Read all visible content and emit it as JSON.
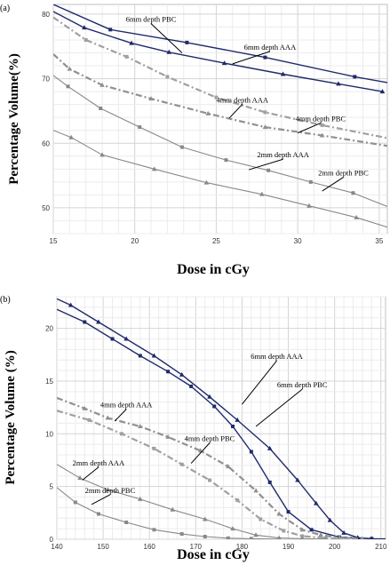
{
  "chart_data": [
    {
      "type": "line",
      "panel_label": "(a)",
      "xlabel": "Dose in cGy",
      "ylabel": "Percentage Volume(%)",
      "xlim": [
        15,
        35.5
      ],
      "ylim": [
        46,
        81.5
      ],
      "x_ticks": [
        15,
        20,
        25,
        30,
        35
      ],
      "y_ticks": [
        50,
        60,
        70,
        80
      ],
      "grid": true,
      "series": [
        {
          "name": "6mm depth PBC",
          "color": "#1f2a6b",
          "style": "solid",
          "width": 1.4,
          "marker": "square",
          "x": [
            15,
            18.5,
            23.2,
            28.0,
            33.5,
            35.5
          ],
          "y": [
            81.5,
            77.6,
            75.6,
            73.3,
            70.3,
            69.4
          ]
        },
        {
          "name": "6mm depth AAA",
          "color": "#1f2a6b",
          "style": "solid",
          "width": 1.4,
          "marker": "triangle",
          "x": [
            15,
            16.9,
            19.8,
            22.1,
            25.5,
            29.1,
            32.5,
            35.2
          ],
          "y": [
            80.4,
            77.9,
            75.5,
            74.1,
            72.4,
            70.7,
            69.2,
            68.0
          ]
        },
        {
          "name": "4mm depth AAA",
          "color": "#909090",
          "style": "dashdot",
          "width": 2.2,
          "marker": "triangle",
          "x": [
            15,
            16.0,
            18.0,
            21.0,
            24.5,
            28.0,
            31.5,
            35.5
          ],
          "y": [
            73.8,
            71.5,
            69.0,
            66.9,
            64.6,
            62.5,
            61.2,
            59.6
          ]
        },
        {
          "name": "4mm depth PBC",
          "color": "#a0a0a0",
          "style": "dashdot",
          "width": 2.2,
          "marker": "square",
          "x": [
            15,
            17.0,
            19.5,
            22.0,
            25.0,
            28.0,
            31.5,
            35.5
          ],
          "y": [
            79.5,
            76.0,
            73.4,
            70.3,
            67.1,
            64.8,
            62.8,
            60.8
          ]
        },
        {
          "name": "2mm depth AAA",
          "color": "#888888",
          "style": "solid",
          "width": 1.1,
          "marker": "triangle",
          "x": [
            15,
            16.1,
            18.0,
            21.2,
            24.4,
            27.8,
            30.7,
            33.6,
            35.5
          ],
          "y": [
            62.0,
            60.9,
            58.2,
            56.0,
            53.9,
            52.1,
            50.3,
            48.5,
            47.0
          ]
        },
        {
          "name": "2mm depth PBC",
          "color": "#888888",
          "style": "solid",
          "width": 1.1,
          "marker": "square",
          "x": [
            15,
            15.9,
            17.9,
            20.3,
            22.9,
            25.6,
            28.2,
            30.8,
            33.4,
            35.5
          ],
          "y": [
            70.5,
            68.8,
            65.4,
            62.5,
            59.4,
            57.4,
            55.8,
            54.0,
            52.3,
            50.2
          ]
        }
      ],
      "annotations": [
        {
          "text": "6mm depth PBC",
          "series": "6mm depth PBC",
          "label_x": 21.0,
          "label_y": 78.8,
          "pt_x": 22.9,
          "pt_y": 74.0
        },
        {
          "text": "6mm depth AAA",
          "series": "6mm depth AAA",
          "label_x": 28.3,
          "label_y": 74.5,
          "pt_x": 26.0,
          "pt_y": 72.3
        },
        {
          "text": "4mm depth AAA",
          "series": "4mm depth AAA",
          "label_x": 26.6,
          "label_y": 66.3,
          "pt_x": 25.8,
          "pt_y": 63.9
        },
        {
          "text": "4mm depth PBC",
          "series": "4mm depth PBC",
          "label_x": 31.4,
          "label_y": 63.4,
          "pt_x": 30.0,
          "pt_y": 61.6
        },
        {
          "text": "2mm depth AAA",
          "series": "2mm depth AAA",
          "label_x": 29.1,
          "label_y": 57.8,
          "pt_x": 27.0,
          "pt_y": 55.9
        },
        {
          "text": "2mm depth PBC",
          "series": "2mm depth PBC",
          "label_x": 32.8,
          "label_y": 55.0,
          "pt_x": 31.5,
          "pt_y": 52.6
        }
      ]
    },
    {
      "type": "line",
      "panel_label": "(b)",
      "xlabel": "Dose in cGy",
      "ylabel": "Percentage Volume (%)",
      "xlim": [
        140,
        211
      ],
      "ylim": [
        0,
        23
      ],
      "x_ticks": [
        140,
        150,
        160,
        170,
        180,
        190,
        200,
        210
      ],
      "y_ticks": [
        0,
        5,
        10,
        15,
        20
      ],
      "grid": true,
      "series": [
        {
          "name": "6mm depth AAA",
          "color": "#1f2a6b",
          "style": "solid",
          "width": 1.4,
          "marker": "triangle",
          "x": [
            140,
            143,
            149,
            155,
            161,
            167,
            173,
            179,
            186,
            192,
            196,
            199,
            202,
            205,
            208,
            211
          ],
          "y": [
            22.8,
            22.2,
            20.6,
            19.0,
            17.4,
            15.6,
            13.5,
            11.3,
            8.6,
            5.6,
            3.4,
            1.8,
            0.6,
            0.15,
            0.05,
            0.03
          ]
        },
        {
          "name": "6mm depth PBC",
          "color": "#1f2a6b",
          "style": "solid",
          "width": 1.4,
          "marker": "square",
          "x": [
            140,
            146,
            152,
            158,
            164,
            169,
            174,
            178,
            182,
            186,
            190,
            195,
            201,
            208
          ],
          "y": [
            21.8,
            20.6,
            19.0,
            17.4,
            15.9,
            14.5,
            12.6,
            10.7,
            8.3,
            5.4,
            2.6,
            0.9,
            0.2,
            0.05
          ]
        },
        {
          "name": "4mm depth AAA",
          "color": "#909090",
          "style": "dashdot",
          "width": 2.2,
          "marker": "triangle",
          "x": [
            140,
            146,
            151,
            158,
            164,
            171,
            177,
            183,
            188,
            193,
            197,
            201,
            206
          ],
          "y": [
            13.4,
            12.4,
            11.5,
            10.7,
            9.7,
            8.4,
            6.9,
            4.6,
            2.4,
            0.9,
            0.4,
            0.15,
            0.05
          ]
        },
        {
          "name": "4mm depth PBC",
          "color": "#a0a0a0",
          "style": "dashdot",
          "width": 2.2,
          "marker": "square",
          "x": [
            140,
            147,
            154,
            161,
            167,
            173,
            179,
            184,
            189,
            193,
            198,
            203
          ],
          "y": [
            12.2,
            11.3,
            10.0,
            8.6,
            7.1,
            5.6,
            3.7,
            1.9,
            0.8,
            0.3,
            0.1,
            0.05
          ]
        },
        {
          "name": "2mm depth AAA",
          "color": "#888888",
          "style": "solid",
          "width": 1.1,
          "marker": "triangle",
          "x": [
            140,
            145,
            151,
            158,
            165,
            172,
            178,
            183,
            188,
            193,
            198
          ],
          "y": [
            7.1,
            5.8,
            4.7,
            3.8,
            2.8,
            1.9,
            1.0,
            0.4,
            0.12,
            0.05,
            0.02
          ]
        },
        {
          "name": "2mm depth PBC",
          "color": "#888888",
          "style": "solid",
          "width": 1.1,
          "marker": "square",
          "x": [
            140,
            144,
            149,
            155,
            161,
            167,
            172,
            177,
            182,
            188
          ],
          "y": [
            4.9,
            3.5,
            2.4,
            1.6,
            0.9,
            0.5,
            0.25,
            0.1,
            0.05,
            0.02
          ]
        }
      ],
      "annotations": [
        {
          "text": "6mm depth AAA",
          "series": "6mm depth AAA",
          "label_x": 187.5,
          "label_y": 17.1,
          "pt_x": 180.0,
          "pt_y": 12.8
        },
        {
          "text": "6mm depth PBC",
          "series": "6mm depth PBC",
          "label_x": 193.0,
          "label_y": 14.4,
          "pt_x": 183.0,
          "pt_y": 10.7
        },
        {
          "text": "4mm depth AAA",
          "series": "4mm depth AAA",
          "label_x": 155.0,
          "label_y": 12.5,
          "pt_x": 152.5,
          "pt_y": 11.2
        },
        {
          "text": "4mm depth PBC",
          "series": "4mm depth PBC",
          "label_x": 173.0,
          "label_y": 9.3,
          "pt_x": 169.0,
          "pt_y": 7.2
        },
        {
          "text": "2mm depth AAA",
          "series": "2mm depth AAA",
          "label_x": 149.0,
          "label_y": 7.0,
          "pt_x": 145.5,
          "pt_y": 5.6
        },
        {
          "text": "2mm depth PBC",
          "series": "2mm depth PBC",
          "label_x": 151.5,
          "label_y": 4.4,
          "pt_x": 147.5,
          "pt_y": 3.3
        }
      ]
    }
  ]
}
